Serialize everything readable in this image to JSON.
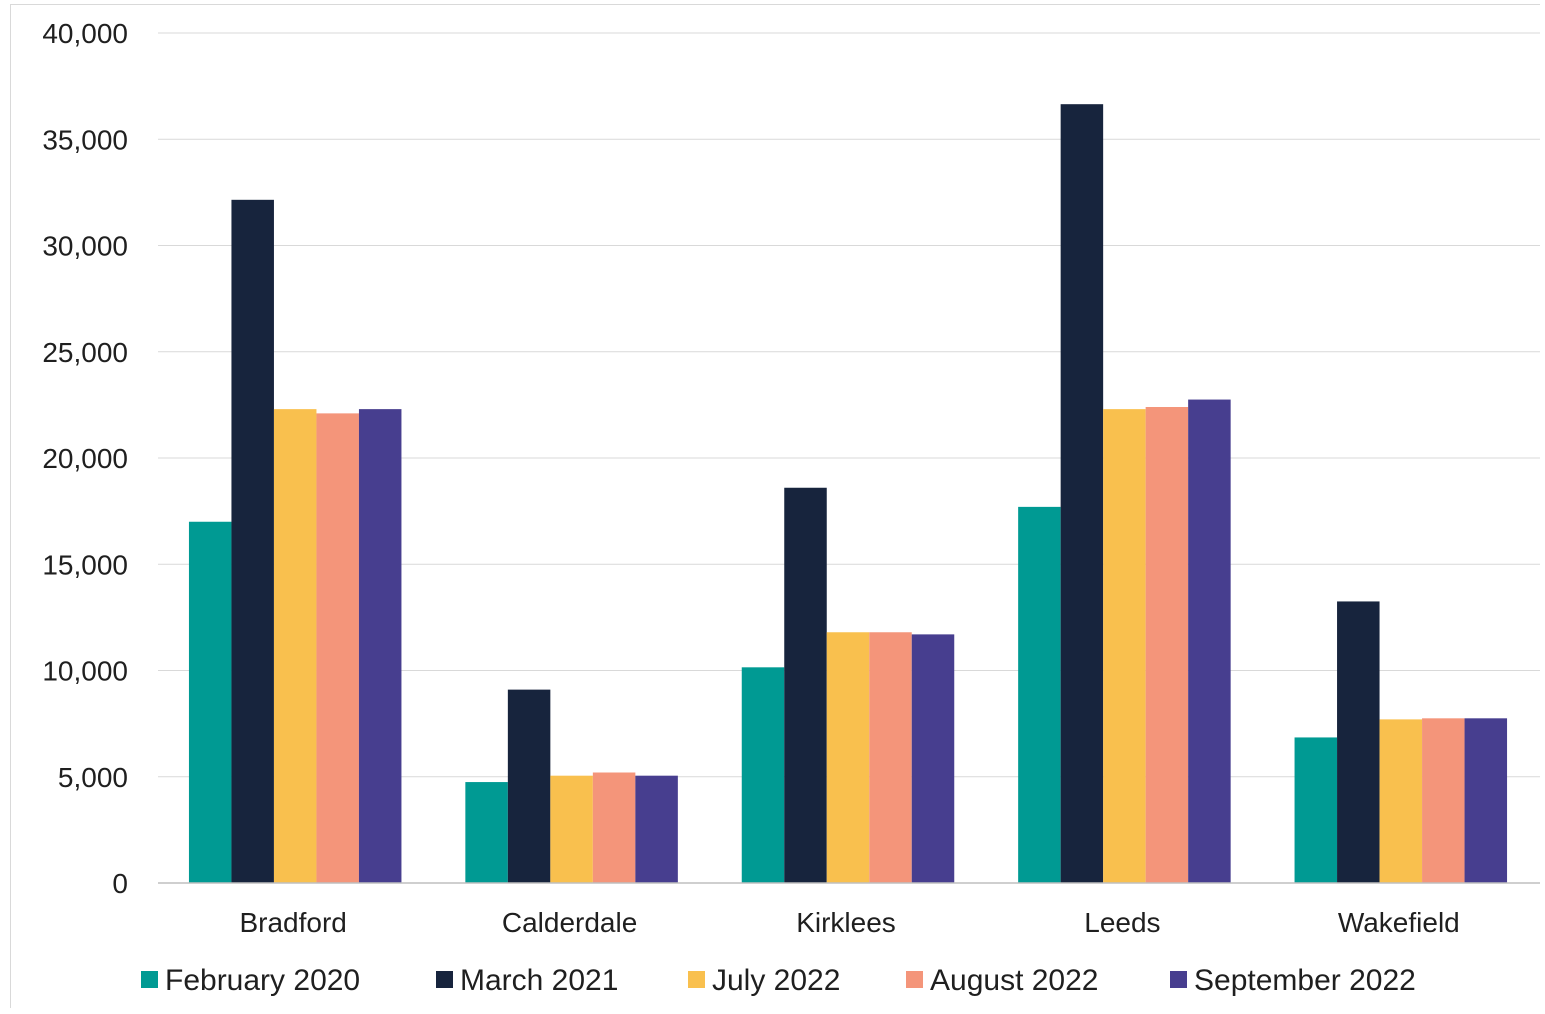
{
  "chart_data": {
    "type": "bar",
    "title": "",
    "xlabel": "",
    "ylabel": "",
    "categories": [
      "Bradford",
      "Calderdale",
      "Kirklees",
      "Leeds",
      "Wakefield"
    ],
    "series": [
      {
        "name": "February 2020",
        "color": "#009a93",
        "values": [
          17000,
          4750,
          10150,
          17700,
          6850
        ]
      },
      {
        "name": "March 2021",
        "color": "#17243d",
        "values": [
          32150,
          9100,
          18600,
          36650,
          13250
        ]
      },
      {
        "name": "July 2022",
        "color": "#f9c04e",
        "values": [
          22300,
          5050,
          11800,
          22300,
          7700
        ]
      },
      {
        "name": "August 2022",
        "color": "#f4957a",
        "values": [
          22100,
          5200,
          11800,
          22400,
          7750
        ]
      },
      {
        "name": "September 2022",
        "color": "#473e8f",
        "values": [
          22300,
          5050,
          11700,
          22750,
          7750
        ]
      }
    ],
    "ylim": [
      0,
      40000
    ],
    "yticks": [
      "0",
      "5,000",
      "10,000",
      "15,000",
      "20,000",
      "25,000",
      "30,000",
      "35,000",
      "40,000"
    ],
    "ytick_values": [
      0,
      5000,
      10000,
      15000,
      20000,
      25000,
      30000,
      35000,
      40000
    ],
    "grid": true,
    "legend_position": "bottom"
  }
}
